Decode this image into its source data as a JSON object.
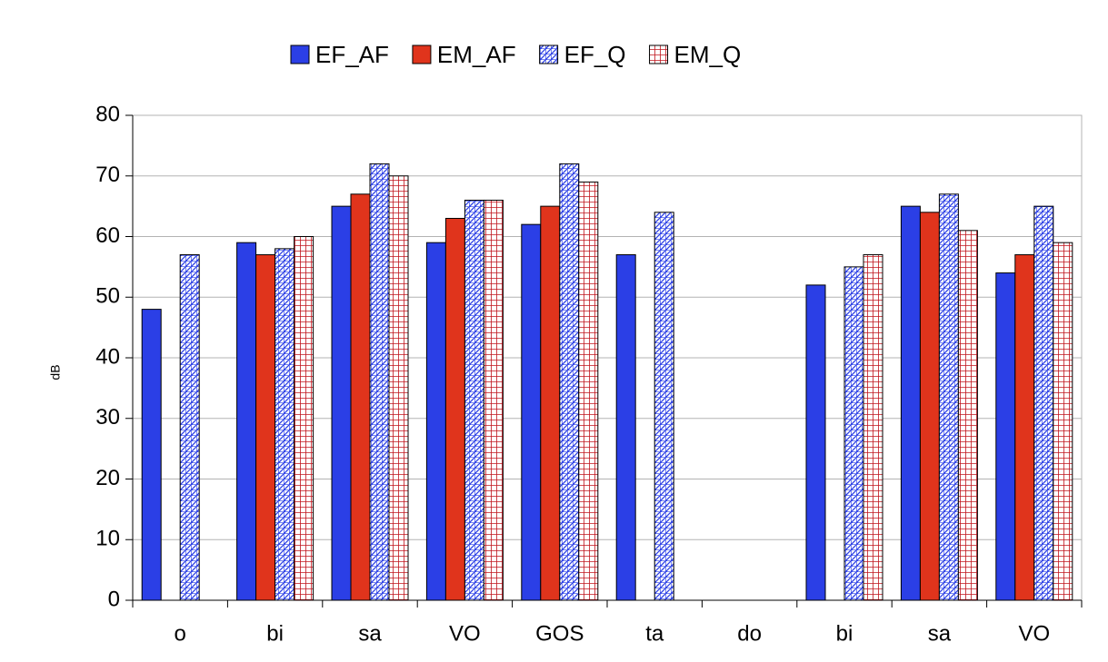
{
  "chart_data": {
    "type": "bar",
    "y_label": "dB",
    "categories": [
      "o",
      "bi",
      "sa",
      "VO",
      "GOS",
      "ta",
      "do",
      "bi",
      "sa",
      "VO"
    ],
    "series": [
      {
        "name": "EF_AF",
        "color": "#2b3fe6",
        "pattern": "solid",
        "values": [
          48,
          59,
          65,
          59,
          62,
          57,
          null,
          52,
          65,
          54
        ]
      },
      {
        "name": "EM_AF",
        "color": "#e0341c",
        "pattern": "solid",
        "values": [
          null,
          57,
          67,
          63,
          65,
          null,
          null,
          null,
          64,
          57
        ]
      },
      {
        "name": "EF_Q",
        "color": "#2b3fe6",
        "pattern": "diagonal",
        "values": [
          57,
          58,
          72,
          66,
          72,
          64,
          null,
          55,
          67,
          65
        ]
      },
      {
        "name": "EM_Q",
        "color": "#c0141c",
        "pattern": "grid",
        "values": [
          null,
          60,
          70,
          66,
          69,
          null,
          null,
          57,
          61,
          59
        ]
      }
    ],
    "ylim": [
      0,
      80
    ],
    "yticks": [
      0,
      10,
      20,
      30,
      40,
      50,
      60,
      70,
      80
    ],
    "grid": true,
    "legend": "top"
  }
}
